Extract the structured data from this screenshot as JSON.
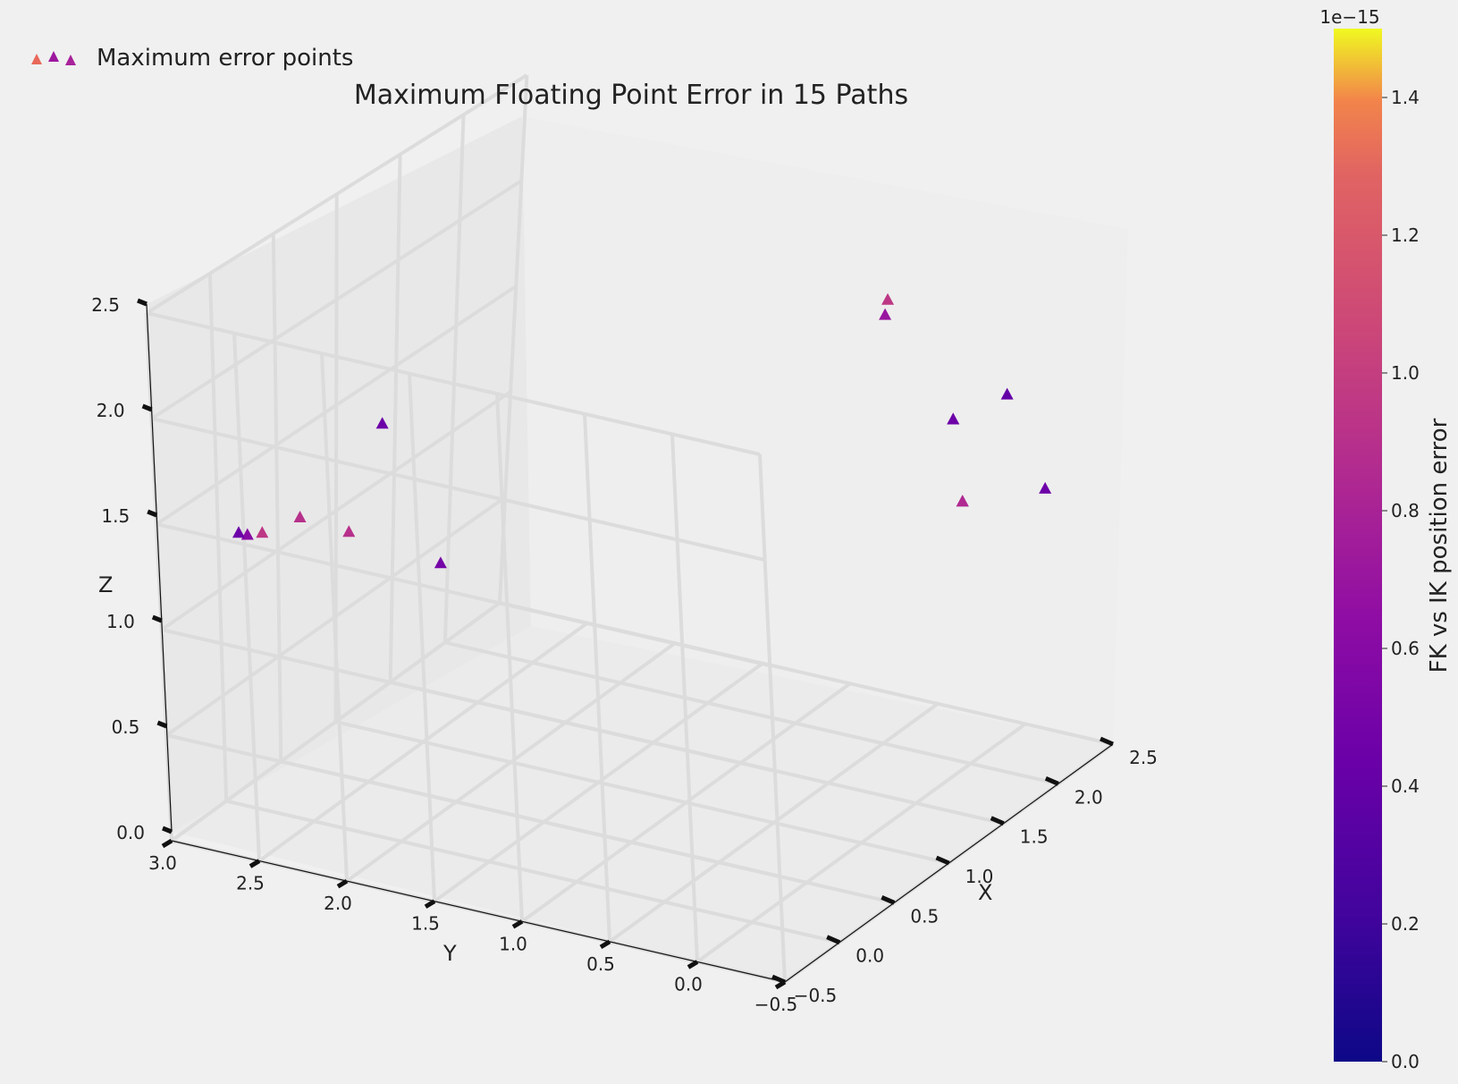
{
  "chart_data": {
    "type": "scatter",
    "projection": "3d",
    "title": "Maximum Floating Point Error in 15 Paths",
    "xlabel": "X",
    "ylabel": "Y",
    "zlabel": "Z",
    "xlim": [
      -0.5,
      2.5
    ],
    "ylim": [
      -0.5,
      3.0
    ],
    "zlim": [
      0.0,
      2.5
    ],
    "xticks": [
      "−0.5",
      "0.0",
      "0.5",
      "1.0",
      "1.5",
      "2.0",
      "2.5"
    ],
    "yticks": [
      "−0.5",
      "0.0",
      "0.5",
      "1.0",
      "1.5",
      "2.0",
      "2.5",
      "3.0"
    ],
    "zticks": [
      "0.0",
      "0.5",
      "1.0",
      "1.5",
      "2.0",
      "2.5"
    ],
    "grid": true,
    "marker": "triangle",
    "legend": {
      "label": "Maximum error points",
      "position": "top-left"
    },
    "colorbar": {
      "label": "FK vs IK position error",
      "scale_label": "1e−15",
      "colormap": "plasma",
      "range": [
        0.0,
        1.5e-15
      ],
      "ticks": [
        "0.0",
        "0.2",
        "0.4",
        "0.6",
        "0.8",
        "1.0",
        "1.2",
        "1.4"
      ]
    },
    "points": [
      {
        "x": -0.35,
        "y": 2.5,
        "z": 1.5,
        "error": 9.5e-16
      },
      {
        "x": -0.32,
        "y": 2.3,
        "z": 1.6,
        "error": 9e-16
      },
      {
        "x": 2.35,
        "y": 0.1,
        "z": 1.6,
        "error": 4e-16
      },
      {
        "x": -0.4,
        "y": 2.55,
        "z": 1.5,
        "error": 6e-16
      },
      {
        "x": 1.25,
        "y": 0.05,
        "z": 2.4,
        "error": 7e-16
      },
      {
        "x": -0.05,
        "y": 2.0,
        "z": 2.0,
        "error": 4.5e-16
      },
      {
        "x": 1.95,
        "y": -0.4,
        "z": 1.4,
        "error": 4.5e-16
      },
      {
        "x": 2.2,
        "y": 0.3,
        "z": 1.5,
        "error": 5e-16
      },
      {
        "x": -0.25,
        "y": 1.55,
        "z": 1.5,
        "error": 5e-16
      },
      {
        "x": -0.4,
        "y": 2.6,
        "z": 1.5,
        "error": 4.5e-16
      },
      {
        "x": -0.35,
        "y": 2.0,
        "z": 1.6,
        "error": 9e-16
      },
      {
        "x": 1.85,
        "y": 0.0,
        "z": 1.3,
        "error": 7.5e-16
      },
      {
        "x": 2.2,
        "y": 0.3,
        "z": 1.5,
        "error": 4.5e-16
      },
      {
        "x": 1.2,
        "y": 0.0,
        "z": 2.5,
        "error": 9.5e-16
      },
      {
        "x": 1.85,
        "y": 0.0,
        "z": 1.3,
        "error": 8.5e-16
      }
    ]
  }
}
